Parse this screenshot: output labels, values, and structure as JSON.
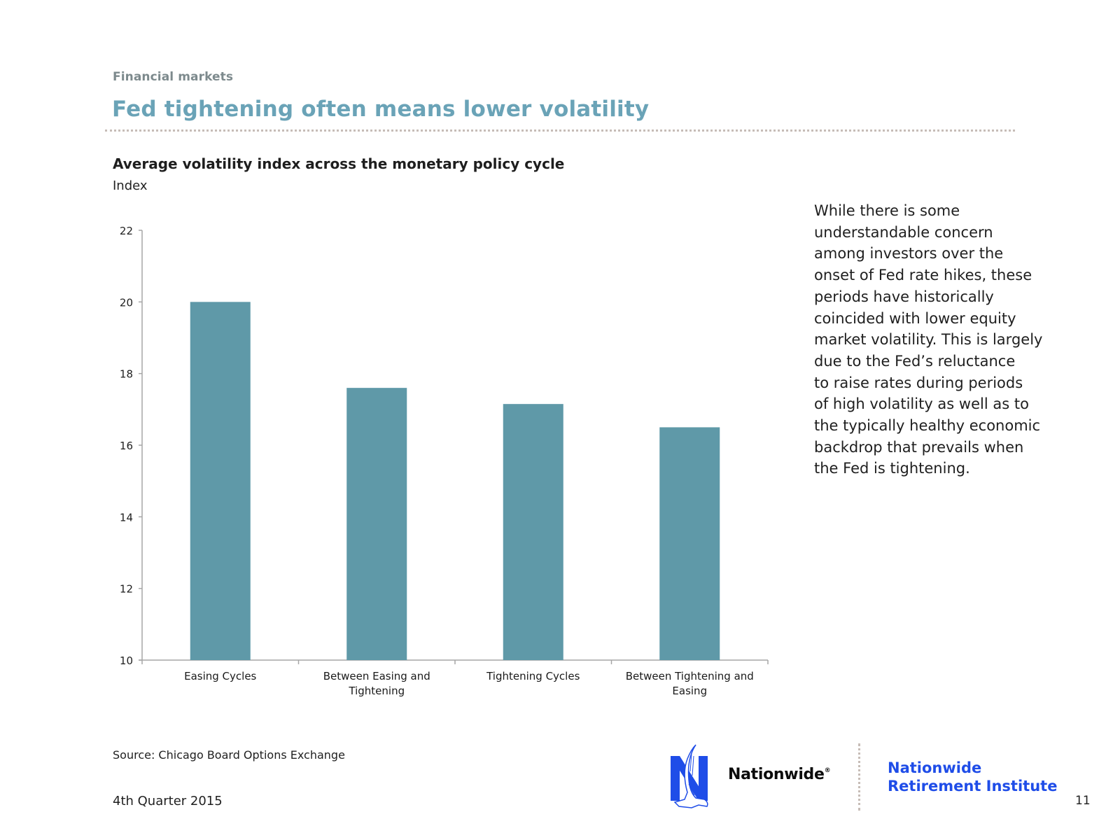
{
  "header": {
    "section_label": "Financial markets",
    "title": "Fed tightening often means lower volatility"
  },
  "chart_data": {
    "type": "bar",
    "title": "Average volatility index across the monetary policy cycle",
    "ylabel": "Index",
    "xlabel": "",
    "categories": [
      "Easing Cycles",
      "Between Easing and Tightening",
      "Tightening Cycles",
      "Between Tightening and Easing"
    ],
    "category_lines": [
      [
        "Easing Cycles"
      ],
      [
        "Between Easing and",
        "Tightening"
      ],
      [
        "Tightening Cycles"
      ],
      [
        "Between Tightening and",
        "Easing"
      ]
    ],
    "values": [
      20.0,
      17.6,
      17.15,
      16.5
    ],
    "ylim": [
      10,
      22
    ],
    "yticks": [
      10,
      12,
      14,
      16,
      18,
      20,
      22
    ],
    "grid": false,
    "legend": "none",
    "bar_color": "#5f99a8"
  },
  "commentary": "While there is some\nunderstandable concern\namong investors over the\nonset of Fed rate hikes, these\nperiods have historically\ncoincided with lower equity\nmarket volatility. This is largely\ndue to the Fed’s reluctance\nto raise rates during periods\nof high volatility as well as to\nthe typically healthy economic\nbackdrop that prevails when\nthe Fed is tightening.",
  "footer": {
    "source": "Source: Chicago Board Options Exchange",
    "quarter": "4th Quarter 2015",
    "page_number": "11",
    "brand_name": "Nationwide",
    "registered_mark": "®",
    "institute_line1": "Nationwide",
    "institute_line2": "Retirement Institute",
    "brand_color": "#1f4de8"
  }
}
